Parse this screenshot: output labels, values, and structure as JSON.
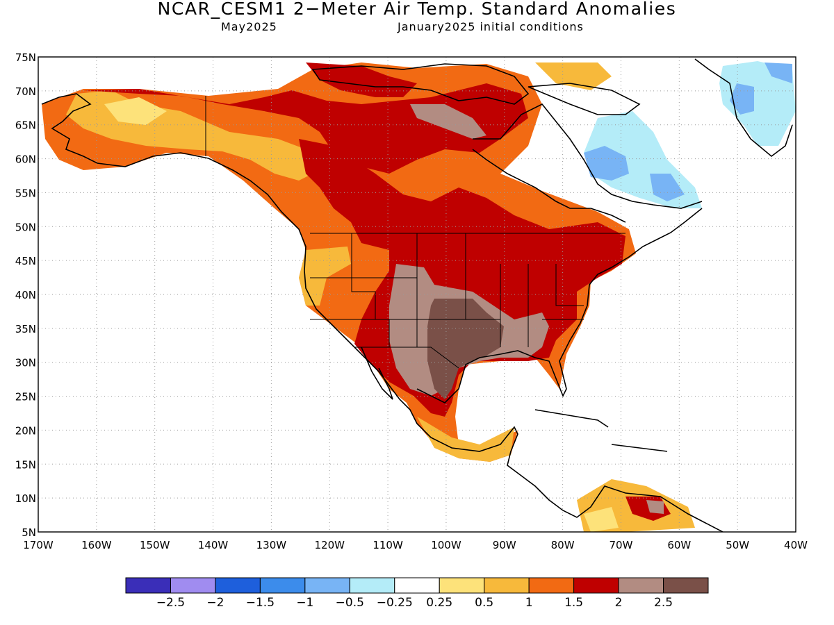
{
  "title": "NCAR_CESM1 2−Meter Air Temp. Standard Anomalies",
  "subtitle_left": "May2025",
  "subtitle_right": "January2025 initial conditions",
  "lat_labels": [
    "75N",
    "70N",
    "65N",
    "60N",
    "55N",
    "50N",
    "45N",
    "40N",
    "35N",
    "30N",
    "25N",
    "20N",
    "15N",
    "10N",
    "5N"
  ],
  "lon_labels": [
    "170W",
    "160W",
    "150W",
    "140W",
    "130W",
    "120W",
    "110W",
    "100W",
    "90W",
    "80W",
    "70W",
    "60W",
    "50W",
    "40W"
  ],
  "colorbar": {
    "colors": [
      "#3a2eb8",
      "#a08cf0",
      "#1e5fdc",
      "#3c8ceb",
      "#78b4f5",
      "#b4ecf8",
      "#ffffff",
      "#fde27a",
      "#f7b93b",
      "#f26a13",
      "#bf0000",
      "#b28c82",
      "#7a5048"
    ],
    "labels": [
      "−2.5",
      "−2",
      "−1.5",
      "−1",
      "−0.5",
      "−0.25",
      "0.25",
      "0.5",
      "1",
      "1.5",
      "2",
      "2.5"
    ]
  }
}
